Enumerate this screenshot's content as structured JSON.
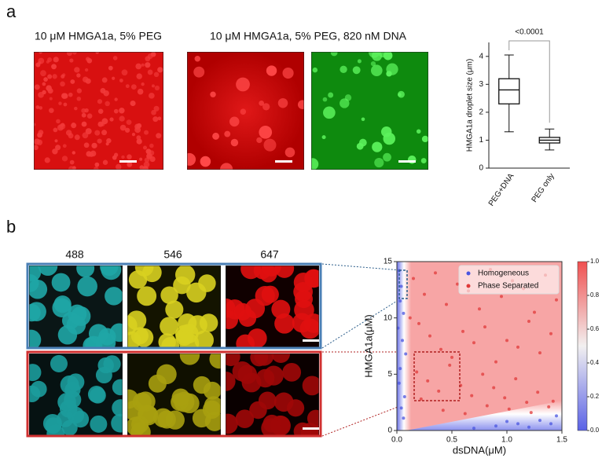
{
  "labels": {
    "a": "a",
    "b": "b"
  },
  "captions": [
    "10 μM HMGA1a, 5% PEG",
    "10 μM HMGA1a, 5% PEG, 820 nM DNA"
  ],
  "channels": [
    "488",
    "546",
    "647"
  ],
  "chart_data": [
    {
      "type": "box",
      "ylabel": "HMGA1a droplet size (μm)",
      "categories": [
        "PEG+DNA",
        "PEG only"
      ],
      "min": [
        1.3,
        0.65
      ],
      "q1": [
        2.3,
        0.9
      ],
      "median": [
        2.8,
        1.0
      ],
      "q3": [
        3.2,
        1.1
      ],
      "max": [
        4.05,
        1.4
      ],
      "ylim": [
        0,
        4.5
      ],
      "yticks": [
        0,
        1,
        2,
        3,
        4
      ],
      "annotation": "<0.0001"
    },
    {
      "type": "scatter",
      "xlabel": "dsDNA(μM)",
      "ylabel": "HMGA1a(μM)",
      "xlim": [
        0,
        1.5
      ],
      "ylim": [
        0,
        15
      ],
      "xticks": [
        {
          "value": 0,
          "label": "0.0"
        },
        {
          "value": 0.5,
          "label": "0.5"
        },
        {
          "value": 1,
          "label": "1.0"
        },
        {
          "value": 1.5,
          "label": "1.5"
        }
      ],
      "yticks": [
        0,
        5,
        10,
        15
      ],
      "legend": "upper right",
      "series": [
        {
          "name": "Homogeneous",
          "color": "#4a55e0",
          "x": [
            0.02,
            0.04,
            0.03,
            0.06,
            0.01,
            0.05,
            0.08,
            0.03,
            0.02,
            0.07,
            0.04,
            0.06,
            0.9,
            1.1,
            1.3,
            1.45,
            1.2,
            0.7,
            1.4,
            1.0
          ],
          "y": [
            14.2,
            12.8,
            11.5,
            10.4,
            9.1,
            8.0,
            6.8,
            5.5,
            4.2,
            3.0,
            2.0,
            1.1,
            0.4,
            0.6,
            0.9,
            1.3,
            0.3,
            0.2,
            0.6,
            0.8
          ]
        },
        {
          "name": "Phase Separated",
          "color": "#e03a3a",
          "x": [
            0.15,
            0.25,
            0.35,
            0.45,
            0.55,
            0.65,
            0.75,
            0.85,
            0.95,
            1.05,
            1.15,
            1.25,
            1.35,
            1.45,
            0.2,
            0.3,
            0.4,
            0.5,
            0.6,
            0.7,
            0.8,
            0.9,
            1.0,
            1.1,
            1.2,
            1.3,
            1.4,
            0.18,
            0.28,
            0.38,
            0.48,
            0.58,
            0.68,
            0.78,
            0.88,
            0.98,
            1.08,
            1.18,
            1.28,
            1.38,
            0.12,
            0.22,
            0.42,
            0.62,
            0.82,
            1.02,
            1.22,
            1.42
          ],
          "y": [
            13.5,
            12.1,
            14.0,
            11.2,
            13.0,
            12.4,
            10.8,
            14.3,
            11.9,
            13.3,
            12.6,
            10.5,
            13.8,
            11.6,
            9.5,
            8.4,
            7.2,
            6.5,
            8.8,
            7.8,
            9.2,
            6.1,
            8.0,
            7.4,
            9.7,
            6.9,
            8.6,
            5.2,
            4.4,
            3.5,
            5.8,
            4.0,
            3.1,
            5.0,
            3.8,
            2.9,
            4.6,
            2.5,
            3.4,
            2.1,
            10.0,
            2.8,
            1.8,
            1.5,
            2.2,
            1.9,
            1.6,
            2.6
          ]
        }
      ],
      "colorbar_ticks": [
        {
          "value": 0,
          "label": "0.0"
        },
        {
          "value": 0.2,
          "label": "0.2"
        },
        {
          "value": 0.4,
          "label": "0.4"
        },
        {
          "value": 0.6,
          "label": "0.6"
        },
        {
          "value": 0.8,
          "label": "0.8"
        },
        {
          "value": 1,
          "label": "1.0"
        }
      ]
    }
  ]
}
